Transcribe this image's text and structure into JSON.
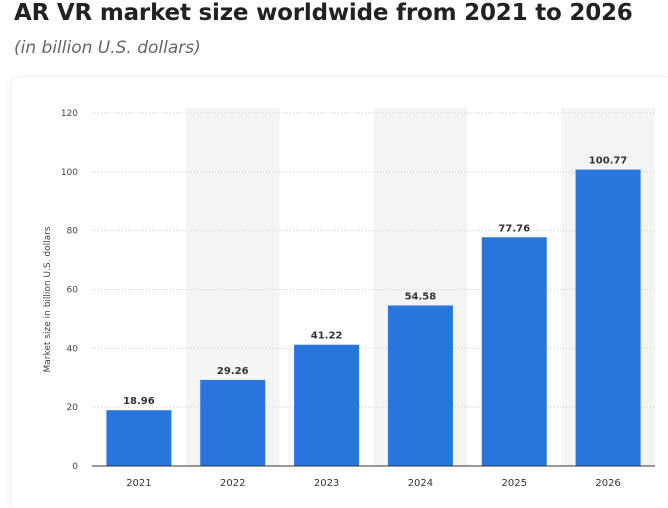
{
  "header": {
    "title": "AR VR market size worldwide from 2021 to 2026",
    "subtitle": "(in billion U.S. dollars)"
  },
  "chart_data": {
    "type": "bar",
    "title": "AR VR market size worldwide from 2021 to 2026",
    "subtitle": "(in billion U.S. dollars)",
    "categories": [
      "2021",
      "2022",
      "2023",
      "2024",
      "2025",
      "2026"
    ],
    "values": [
      18.96,
      29.26,
      41.22,
      54.58,
      77.76,
      100.77
    ],
    "data_labels": [
      "18.96",
      "29.26",
      "41.22",
      "54.58",
      "77.76",
      "100.77"
    ],
    "xlabel": "",
    "ylabel": "Market size in billion U.S. dollars",
    "ylim": [
      0,
      120
    ],
    "yticks": [
      0,
      20,
      40,
      60,
      80,
      100,
      120
    ],
    "grid": true,
    "legend": "none",
    "colors": {
      "bar": "#2876dd",
      "band": "#f4f4f4",
      "grid": "#cccccc",
      "axis": "#333333"
    }
  }
}
